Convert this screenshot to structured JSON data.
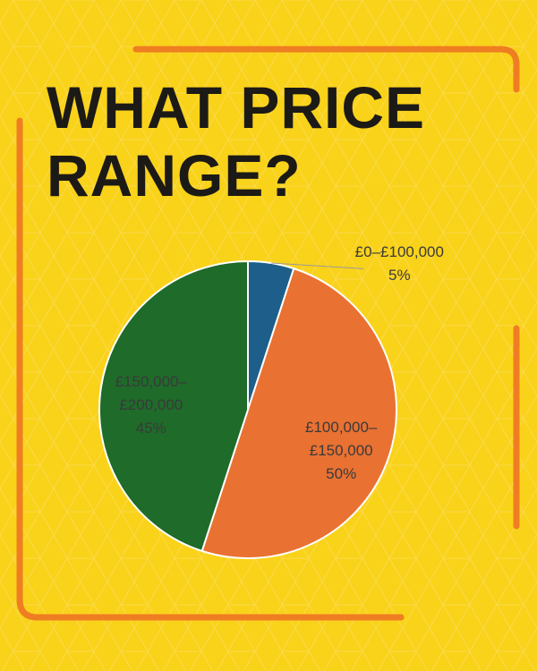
{
  "chart_data": {
    "type": "pie",
    "title": "WHAT PRICE RANGE?",
    "categories": [
      "£0–£100,000",
      "£100,000–£150,000",
      "£150,000–£200,000"
    ],
    "values": [
      5,
      50,
      45
    ],
    "value_labels": [
      "5%",
      "50%",
      "45%"
    ],
    "colors": [
      "#1d5f8a",
      "#e97132",
      "#1e6b2a"
    ]
  }
}
